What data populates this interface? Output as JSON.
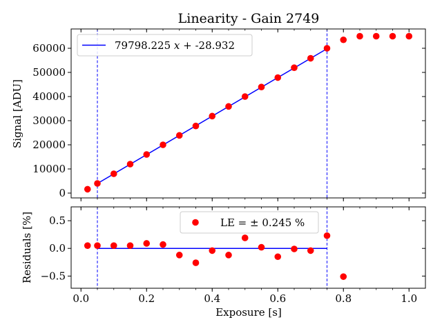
{
  "chart_data": [
    {
      "type": "scatter",
      "title": "Linearity - Gain 2749",
      "xlabel": "",
      "ylabel": "Signal [ADU]",
      "xlim": [
        -0.03,
        1.05
      ],
      "ylim": [
        -2000,
        68000
      ],
      "xticks": [
        0.0,
        0.2,
        0.4,
        0.6,
        0.8,
        1.0
      ],
      "yticks": [
        0,
        10000,
        20000,
        30000,
        40000,
        50000,
        60000
      ],
      "ytick_labels": [
        "0",
        "10000",
        "20000",
        "30000",
        "40000",
        "50000",
        "60000"
      ],
      "grid": false,
      "legend": "upper left",
      "fit_range": [
        0.05,
        0.75
      ],
      "series": [
        {
          "name": "data",
          "kind": "scatter",
          "color": "#ff0000",
          "x": [
            0.02,
            0.05,
            0.1,
            0.15,
            0.2,
            0.25,
            0.3,
            0.35,
            0.4,
            0.45,
            0.5,
            0.55,
            0.6,
            0.65,
            0.7,
            0.75,
            0.8,
            0.85,
            0.9,
            0.95,
            1.0
          ],
          "y": [
            1600,
            4000,
            8000,
            12000,
            16000,
            20000,
            23900,
            27800,
            31900,
            35900,
            40000,
            43950,
            47850,
            51950,
            55850,
            60000,
            63500,
            65000,
            65000,
            65000,
            65000
          ]
        },
        {
          "name": "79798.225 x + -28.932",
          "kind": "line",
          "color": "#0000ff",
          "x": [
            0.05,
            0.75
          ],
          "y": [
            3961,
            59820
          ]
        }
      ],
      "legend_entries": [
        {
          "label_pre": "79798.225 ",
          "label_var": "x",
          "label_post": " + -28.932",
          "color": "#0000ff"
        }
      ]
    },
    {
      "type": "scatter",
      "title": "",
      "xlabel": "Exposure [s]",
      "ylabel": "Residuals [%]",
      "xlim": [
        -0.03,
        1.05
      ],
      "ylim": [
        -0.72,
        0.75
      ],
      "xticks": [
        0.0,
        0.2,
        0.4,
        0.6,
        0.8,
        1.0
      ],
      "xtick_labels": [
        "0.0",
        "0.2",
        "0.4",
        "0.6",
        "0.8",
        "1.0"
      ],
      "yticks": [
        -0.5,
        0.0,
        0.5
      ],
      "ytick_labels": [
        "−0.5",
        "0.0",
        "0.5"
      ],
      "grid": false,
      "legend": "upper center",
      "series": [
        {
          "name": "LE = ± 0.245 %",
          "kind": "scatter",
          "color": "#ff0000",
          "x": [
            0.02,
            0.05,
            0.1,
            0.15,
            0.2,
            0.25,
            0.3,
            0.35,
            0.4,
            0.45,
            0.5,
            0.55,
            0.6,
            0.65,
            0.7,
            0.75,
            0.8
          ],
          "y": [
            0.05,
            0.05,
            0.05,
            0.05,
            0.09,
            0.07,
            -0.12,
            -0.26,
            -0.04,
            -0.12,
            0.19,
            0.02,
            -0.15,
            -0.01,
            -0.04,
            0.23,
            -0.51
          ]
        },
        {
          "name": "zero",
          "kind": "line",
          "color": "#0000ff",
          "x": [
            0.05,
            0.75
          ],
          "y": [
            0,
            0
          ]
        }
      ],
      "legend_entries": [
        {
          "label": "LE = ± 0.245 %",
          "color": "#ff0000"
        }
      ]
    }
  ]
}
